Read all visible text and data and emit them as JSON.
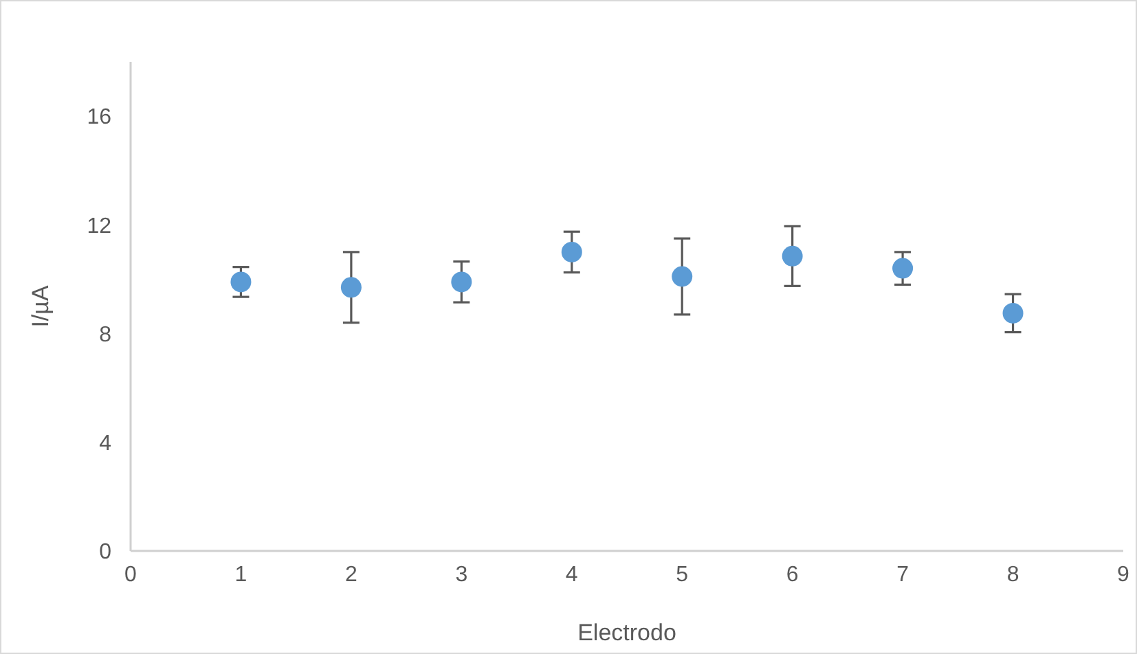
{
  "chart_data": {
    "type": "scatter",
    "xlabel": "Electrodo",
    "ylabel": "I/µA",
    "x": [
      1,
      2,
      3,
      4,
      5,
      6,
      7,
      8
    ],
    "values": [
      9.9,
      9.7,
      9.9,
      11.0,
      10.1,
      10.85,
      10.4,
      8.75
    ],
    "errors": [
      0.55,
      1.3,
      0.75,
      0.75,
      1.4,
      1.1,
      0.6,
      0.7
    ],
    "color": "#5b9bd5",
    "marker": "circle",
    "xlim": [
      0,
      9
    ],
    "xticks": [
      0,
      1,
      2,
      3,
      4,
      5,
      6,
      7,
      8,
      9
    ],
    "ylim": [
      0,
      18
    ],
    "yticks": [
      0,
      4,
      8,
      12,
      16
    ],
    "grid": false
  }
}
